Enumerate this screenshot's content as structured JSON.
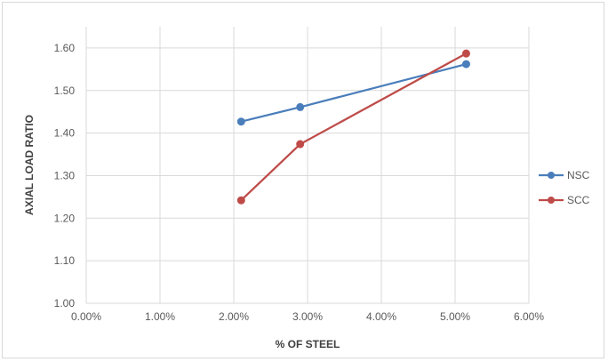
{
  "chart_data": {
    "type": "line",
    "title": "",
    "xlabel": "% OF STEEL",
    "ylabel": "AXIAL LOAD RATIO",
    "xlim": [
      0.0,
      0.06
    ],
    "ylim": [
      1.0,
      1.65
    ],
    "x_ticks": [
      0.0,
      0.01,
      0.02,
      0.03,
      0.04,
      0.05,
      0.06
    ],
    "x_tick_labels": [
      "0.00%",
      "1.00%",
      "2.00%",
      "3.00%",
      "4.00%",
      "5.00%",
      "6.00%"
    ],
    "y_ticks": [
      1.0,
      1.1,
      1.2,
      1.3,
      1.4,
      1.5,
      1.6
    ],
    "y_tick_labels": [
      "1.00",
      "1.10",
      "1.20",
      "1.30",
      "1.40",
      "1.50",
      "1.60"
    ],
    "grid": true,
    "legend_position": "right",
    "series": [
      {
        "name": "NSC",
        "color": "#4a7ebb",
        "x": [
          0.021,
          0.029,
          0.0515
        ],
        "y": [
          1.427,
          1.461,
          1.562
        ]
      },
      {
        "name": "SCC",
        "color": "#be4b48",
        "x": [
          0.021,
          0.029,
          0.0515
        ],
        "y": [
          1.242,
          1.374,
          1.587
        ]
      }
    ]
  }
}
